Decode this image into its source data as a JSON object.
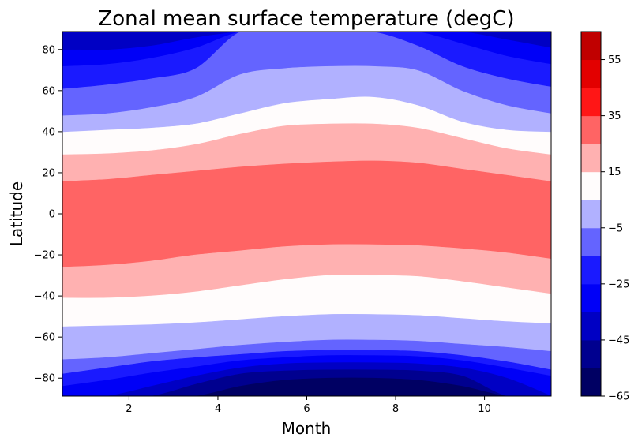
{
  "chart_data": {
    "type": "filled-contour",
    "title": "Zonal mean surface temperature (degC)",
    "xlabel": "Month",
    "ylabel": "Latitude",
    "xlim": [
      0.5,
      11.5
    ],
    "ylim": [
      -88.75,
      88.75
    ],
    "xticks": [
      2,
      4,
      6,
      8,
      10
    ],
    "yticks": [
      -80,
      -60,
      -40,
      -20,
      0,
      20,
      40,
      60,
      80
    ],
    "colormap": "seismic",
    "colorbar": {
      "levels": [
        -65,
        -55,
        -45,
        -35,
        -25,
        -15,
        -5,
        5,
        15,
        25,
        35,
        45,
        55,
        65
      ],
      "tick_labels": [
        -65,
        -45,
        -25,
        -5,
        15,
        35,
        55
      ],
      "colors": [
        "#000063",
        "#00008f",
        "#0000c4",
        "#0000f7",
        "#1a1aff",
        "#6464ff",
        "#b1b1ff",
        "#fffcfc",
        "#ffb1b1",
        "#ff6464",
        "#ff1616",
        "#e30000",
        "#c00000",
        "#9e0000"
      ]
    },
    "months": [
      0.5,
      1.5,
      2.5,
      3.5,
      4.5,
      5.5,
      6.5,
      7.5,
      8.5,
      9.5,
      10.5,
      11.5
    ],
    "contour_boundaries_latitude": [
      {
        "level": 25,
        "north": [
          16,
          17,
          19,
          21,
          23,
          24.5,
          25.5,
          26,
          25,
          22,
          19,
          16
        ],
        "south": [
          -26,
          -25,
          -23,
          -20,
          -18,
          -16,
          -15,
          -15,
          -15.5,
          -17,
          -19,
          -22
        ]
      },
      {
        "level": 15,
        "north": [
          29,
          29.5,
          31,
          34,
          39,
          43,
          44,
          44,
          42,
          37,
          32,
          29
        ],
        "south": [
          -41,
          -41,
          -40,
          -38,
          -35,
          -32,
          -30,
          -30,
          -30.5,
          -33,
          -36,
          -39
        ]
      },
      {
        "level": 5,
        "north": [
          40,
          41,
          42,
          44,
          49,
          54,
          56,
          57,
          53,
          45,
          41,
          40
        ],
        "south": [
          -55,
          -54.5,
          -54,
          -53,
          -51.5,
          -50,
          -49,
          -49,
          -49.5,
          -51,
          -52.5,
          -53.5
        ]
      },
      {
        "level": -5,
        "north": [
          48,
          49,
          52,
          57,
          68,
          71,
          72,
          72,
          70,
          60,
          53,
          49
        ],
        "south": [
          -71,
          -70,
          -68,
          -66,
          -64,
          -62.5,
          -61.5,
          -61.5,
          -62,
          -63.5,
          -65,
          -67
        ]
      },
      {
        "level": -15,
        "north": [
          61,
          63,
          66,
          71,
          88.75,
          88.75,
          88.75,
          88.75,
          82,
          72,
          66,
          62
        ],
        "south": [
          -78,
          -75,
          -72,
          -70,
          -68.5,
          -67,
          -66.5,
          -66.5,
          -67,
          -69,
          -72,
          -76
        ]
      },
      {
        "level": -25,
        "north": [
          72,
          73,
          76,
          81,
          88.75,
          88.75,
          88.75,
          88.75,
          88.75,
          83,
          77,
          73
        ],
        "south": [
          -84,
          -81,
          -77.5,
          -74.5,
          -71.5,
          -70,
          -69,
          -69,
          -69.5,
          -71.5,
          -75,
          -79
        ]
      },
      {
        "level": -35,
        "north": [
          80,
          80,
          82,
          86,
          88.75,
          88.75,
          88.75,
          88.75,
          88.75,
          88.75,
          85,
          81
        ],
        "south": [
          -88.75,
          -88.75,
          -84,
          -79,
          -75,
          -73,
          -72.5,
          -72.5,
          -73,
          -75,
          -80,
          -88.75
        ]
      },
      {
        "level": -45,
        "north": [
          88.75,
          88.75,
          88.75,
          88.75,
          88.75,
          88.75,
          88.75,
          88.75,
          88.75,
          88.75,
          88.75,
          88.75
        ],
        "south": [
          -88.75,
          -88.75,
          -88.75,
          -83,
          -78,
          -76.5,
          -76,
          -76,
          -76.5,
          -79,
          -88.75,
          -88.75
        ]
      },
      {
        "level": -55,
        "north": [
          88.75,
          88.75,
          88.75,
          88.75,
          88.75,
          88.75,
          88.75,
          88.75,
          88.75,
          88.75,
          88.75,
          88.75
        ],
        "south": [
          -88.75,
          -88.75,
          -88.75,
          -88.75,
          -84,
          -81,
          -80,
          -80,
          -81,
          -84,
          -88.75,
          -88.75
        ]
      }
    ],
    "south_extra": [
      {
        "level": -65,
        "south": [
          -88.75,
          -88.75,
          -88.75,
          -88.75,
          -88.75,
          -87,
          -86.5,
          -86.5,
          -87,
          -88.75,
          -88.75,
          -88.75
        ]
      }
    ]
  }
}
